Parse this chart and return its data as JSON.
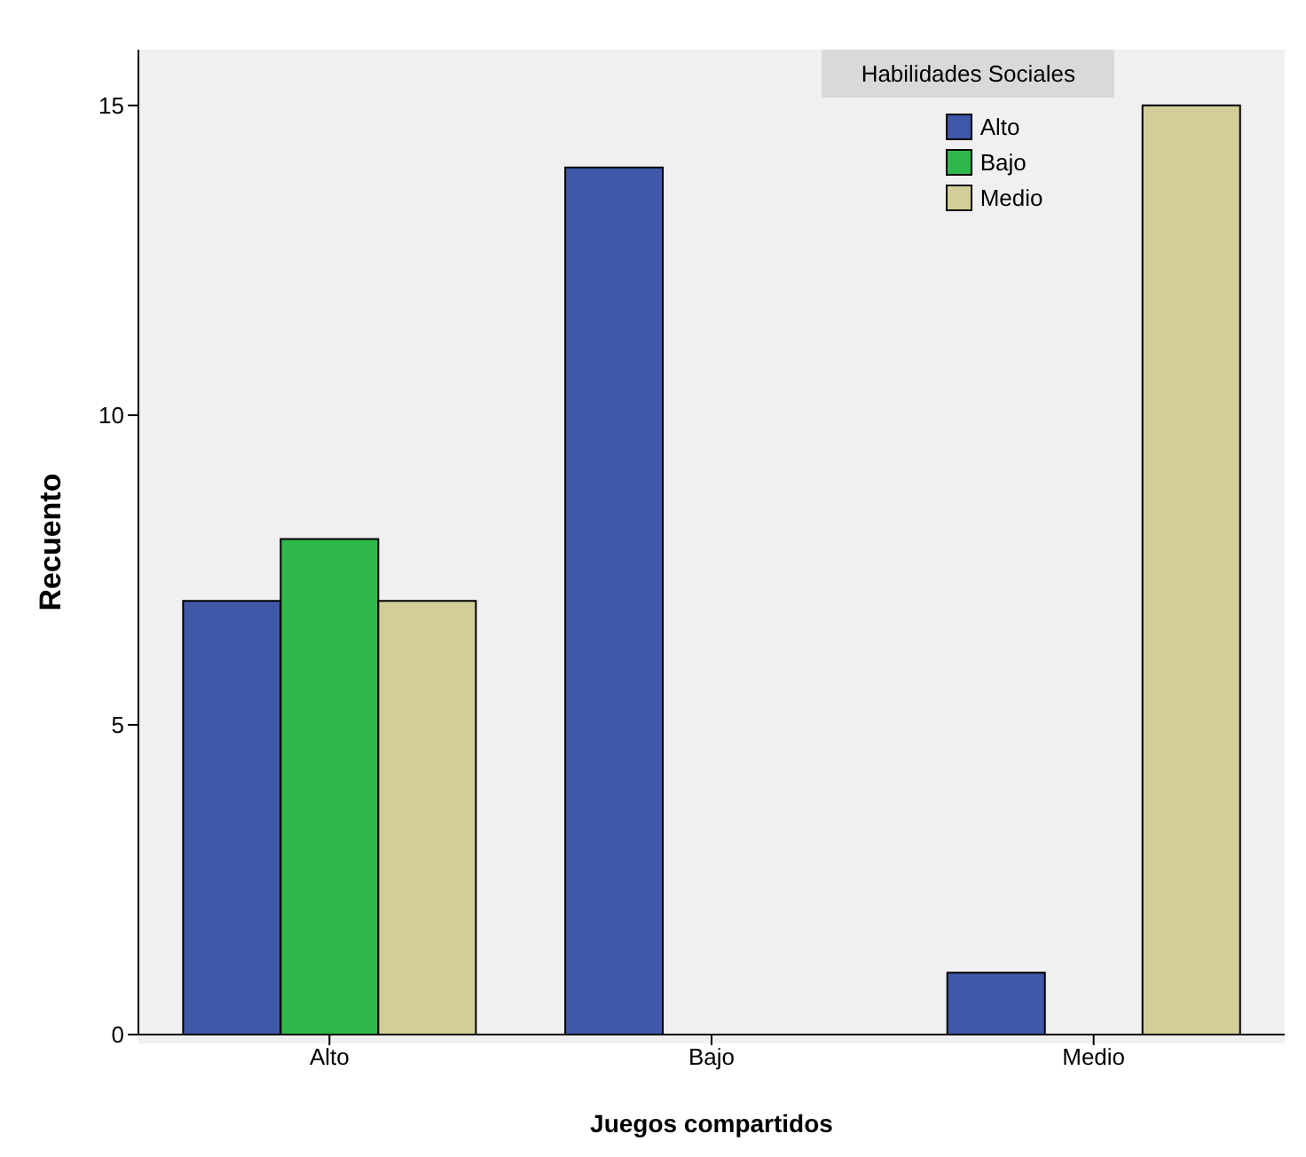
{
  "chart_data": {
    "type": "bar",
    "xlabel": "Juegos compartidos",
    "ylabel": "Recuento",
    "legend_title": "Habilidades Sociales",
    "legend": "top right",
    "grid": false,
    "categories": [
      "Alto",
      "Bajo",
      "Medio"
    ],
    "series": [
      {
        "name": "Alto",
        "color": "#3f58a8",
        "values": [
          7,
          14,
          1
        ]
      },
      {
        "name": "Bajo",
        "color": "#2eb84b",
        "values": [
          8,
          0,
          0
        ]
      },
      {
        "name": "Medio",
        "color": "#d3cd98",
        "values": [
          7,
          0,
          15
        ]
      }
    ],
    "ylim": [
      0,
      15.9
    ],
    "yticks": [
      0,
      5,
      10,
      15
    ]
  }
}
